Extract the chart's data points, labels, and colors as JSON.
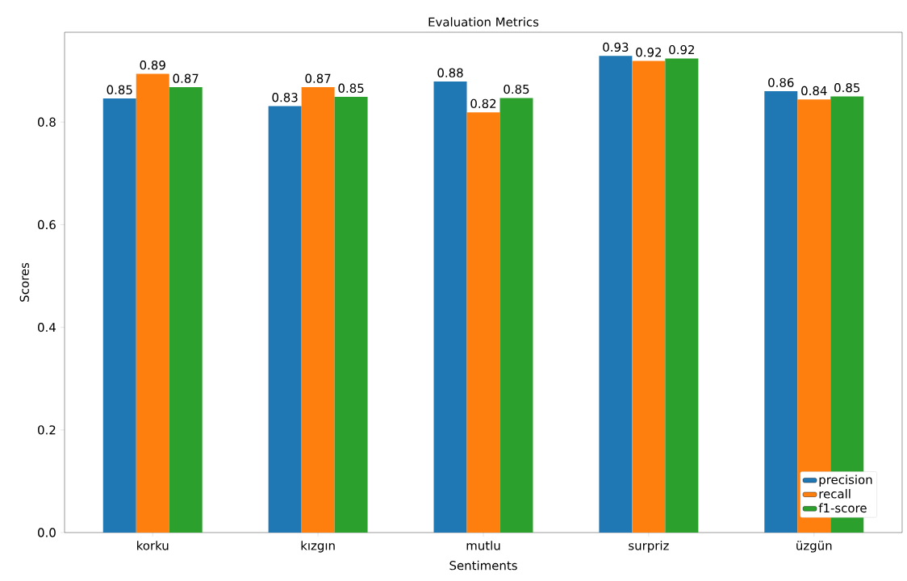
{
  "chart_data": {
    "type": "bar",
    "title": "Evaluation Metrics",
    "xlabel": "Sentiments",
    "ylabel": "Scores",
    "categories": [
      "korku",
      "kızgın",
      "mutlu",
      "surpriz",
      "üzgün"
    ],
    "series": [
      {
        "name": "precision",
        "color": "#1f77b4",
        "values": [
          0.846,
          0.831,
          0.879,
          0.929,
          0.86
        ],
        "value_labels": [
          "0.85",
          "0.83",
          "0.88",
          "0.93",
          "0.86"
        ]
      },
      {
        "name": "recall",
        "color": "#ff7f0e",
        "values": [
          0.894,
          0.868,
          0.819,
          0.919,
          0.844
        ],
        "value_labels": [
          "0.89",
          "0.87",
          "0.82",
          "0.92",
          "0.84"
        ]
      },
      {
        "name": "f1-score",
        "color": "#2ca02c",
        "values": [
          0.868,
          0.849,
          0.847,
          0.924,
          0.85
        ],
        "value_labels": [
          "0.87",
          "0.85",
          "0.85",
          "0.92",
          "0.85"
        ]
      }
    ],
    "ylim": [
      0,
      0.975
    ],
    "yticks": [
      {
        "value": 0,
        "label": "0.0"
      },
      {
        "value": 0.2,
        "label": "0.2"
      },
      {
        "value": 0.4,
        "label": "0.4"
      },
      {
        "value": 0.6,
        "label": "0.6"
      },
      {
        "value": 0.8,
        "label": "0.8"
      }
    ],
    "legend": "bottom right",
    "grid": false
  }
}
